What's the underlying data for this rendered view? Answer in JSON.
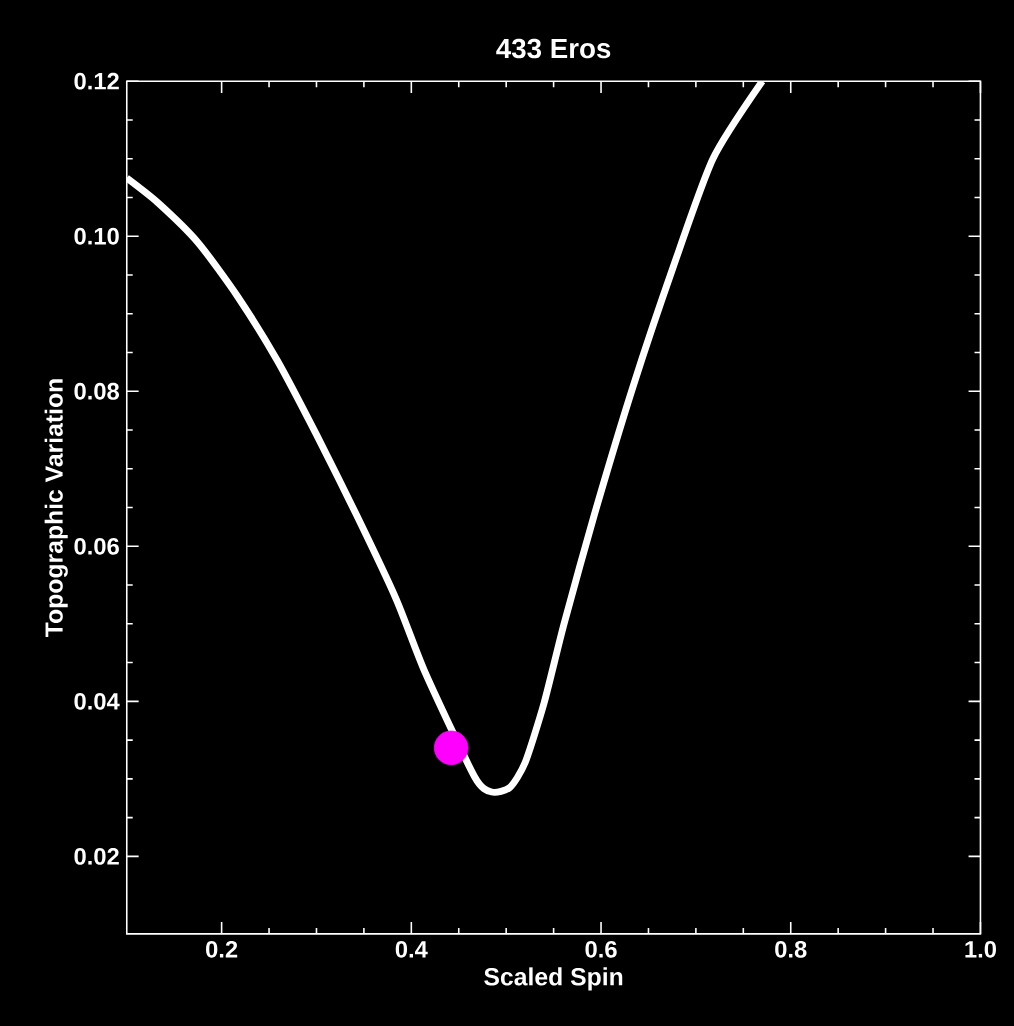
{
  "chart_data": {
    "type": "line",
    "title": "433 Eros",
    "xlabel": "Scaled Spin",
    "ylabel": "Topographic Variation",
    "xlim": [
      0.1,
      1.0
    ],
    "ylim": [
      0.01,
      0.12
    ],
    "xticks": [
      {
        "value": 0.2,
        "label": "0.2"
      },
      {
        "value": 0.4,
        "label": "0.4"
      },
      {
        "value": 0.6,
        "label": "0.6"
      },
      {
        "value": 0.8,
        "label": "0.8"
      },
      {
        "value": 1.0,
        "label": "1.0"
      }
    ],
    "yticks": [
      {
        "value": 0.02,
        "label": "0.02"
      },
      {
        "value": 0.04,
        "label": "0.04"
      },
      {
        "value": 0.06,
        "label": "0.06"
      },
      {
        "value": 0.08,
        "label": "0.08"
      },
      {
        "value": 0.1,
        "label": "0.10"
      },
      {
        "value": 0.12,
        "label": "0.12"
      }
    ],
    "series": [
      {
        "color": "#ffffff",
        "x": [
          0.1,
          0.133,
          0.175,
          0.217,
          0.259,
          0.3,
          0.342,
          0.384,
          0.415,
          0.467,
          0.485,
          0.504,
          0.52,
          0.54,
          0.561,
          0.593,
          0.634,
          0.676,
          0.718,
          0.77
        ],
        "values": [
          0.1075,
          0.1043,
          0.0992,
          0.0922,
          0.0839,
          0.0744,
          0.0641,
          0.0532,
          0.0436,
          0.0302,
          0.0283,
          0.0289,
          0.0321,
          0.0398,
          0.05,
          0.0641,
          0.0807,
          0.096,
          0.11,
          0.12
        ]
      },
      {
        "type": "scatter",
        "color": "#ff00ff",
        "marker": "circle",
        "x": [
          0.442
        ],
        "values": [
          0.034
        ]
      }
    ]
  }
}
